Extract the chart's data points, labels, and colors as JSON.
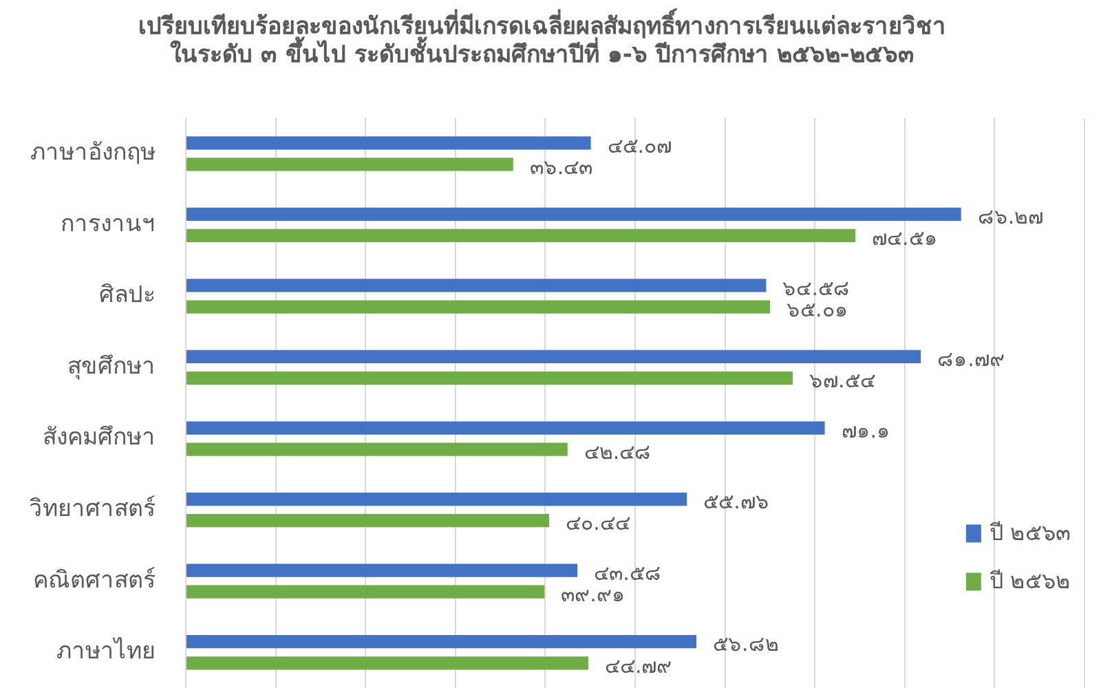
{
  "chart_data": {
    "type": "bar",
    "orientation": "horizontal",
    "title": "เปรียบเทียบร้อยละของนักเรียนที่มีเกรดเฉลี่ยผลสัมฤทธิ์ทางการเรียนแต่ละรายวิชา\nในระดับ ๓ ขึ้นไป ระดับชั้นประถมศึกษาปีที่ ๑-๖ ปีการศึกษา ๒๕๖๒-๒๕๖๓",
    "categories": [
      "ภาษาอังกฤษ",
      "การงานฯ",
      "ศิลปะ",
      "สุขศึกษา",
      "สังคมศึกษา",
      "วิทยาศาสตร์",
      "คณิตศาสตร์",
      "ภาษาไทย"
    ],
    "series": [
      {
        "name": "ปี ๒๕๖๓",
        "color": "#4472c4",
        "values": [
          45.07,
          86.27,
          64.58,
          81.79,
          71.1,
          55.76,
          43.58,
          56.82
        ],
        "value_labels": [
          "๔๕.๐๗",
          "๘๖.๒๗",
          "๖๔.๕๘",
          "๘๑.๗๙",
          "๗๑.๑",
          "๕๕.๗๖",
          "๔๓.๕๘",
          "๕๖.๘๒"
        ]
      },
      {
        "name": "ปี ๒๕๖๒",
        "color": "#70ad47",
        "values": [
          36.43,
          74.51,
          65.01,
          67.54,
          42.48,
          40.44,
          39.91,
          44.79
        ],
        "value_labels": [
          "๓๖.๔๓",
          "๗๔.๕๑",
          "๖๕.๐๑",
          "๖๗.๕๔",
          "๔๒.๔๘",
          "๔๐.๔๔",
          "๓๙.๙๑",
          "๔๔.๗๙"
        ]
      }
    ],
    "xlim": [
      0,
      100
    ],
    "xticks": [
      {
        "value": 0,
        "label": null
      },
      {
        "value": 10,
        "label": null
      },
      {
        "value": 20,
        "label": null
      },
      {
        "value": 30,
        "label": null
      },
      {
        "value": 40,
        "label": null
      },
      {
        "value": 50,
        "label": null
      },
      {
        "value": 60,
        "label": null
      },
      {
        "value": 70,
        "label": null
      },
      {
        "value": 80,
        "label": null
      },
      {
        "value": 90,
        "label": null
      },
      {
        "value": 100,
        "label": null
      }
    ],
    "tick_labels": "y",
    "grid": "x",
    "legend": "right"
  }
}
